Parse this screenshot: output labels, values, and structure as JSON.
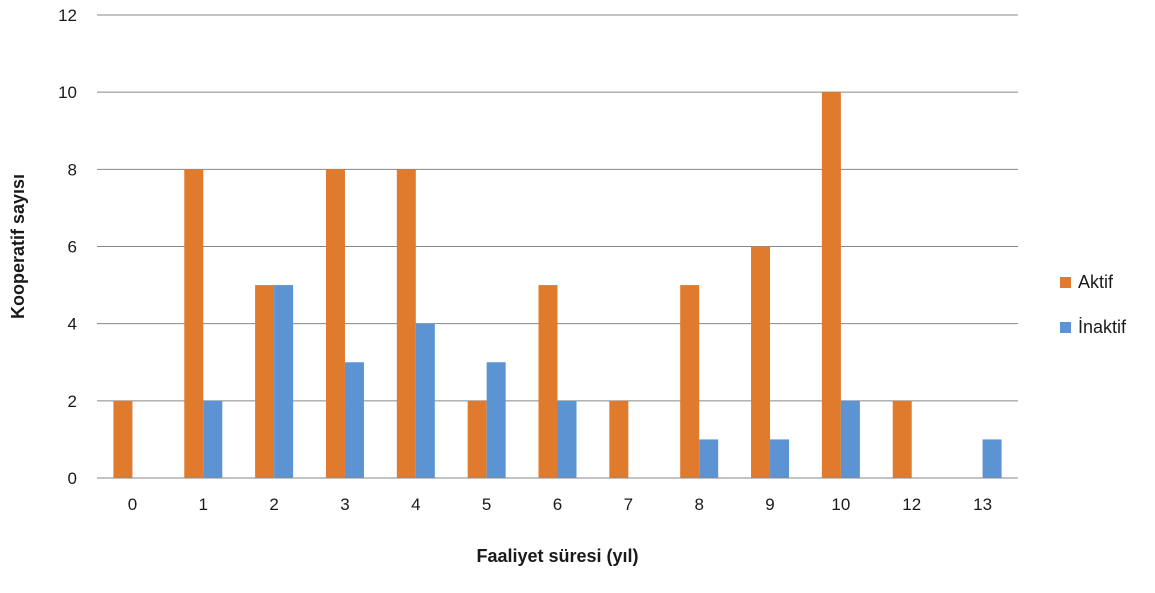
{
  "chart_data": {
    "type": "bar",
    "title": "",
    "xlabel": "Faaliyet süresi (yıl)",
    "ylabel": "Kooperatif sayısı",
    "categories": [
      "0",
      "1",
      "2",
      "3",
      "4",
      "5",
      "6",
      "7",
      "8",
      "9",
      "10",
      "12",
      "13"
    ],
    "series": [
      {
        "name": "Aktif",
        "color": "#E07B2E",
        "values": [
          2,
          8,
          5,
          8,
          8,
          2,
          5,
          2,
          5,
          6,
          10,
          2,
          0
        ]
      },
      {
        "name": "İnaktif",
        "color": "#5B93D3",
        "values": [
          0,
          2,
          5,
          3,
          4,
          3,
          2,
          0,
          1,
          1,
          2,
          0,
          1
        ]
      }
    ],
    "ylim": [
      0,
      12
    ],
    "yticks": [
      0,
      2,
      4,
      6,
      8,
      10,
      12
    ],
    "grid": true,
    "legend": "right"
  }
}
